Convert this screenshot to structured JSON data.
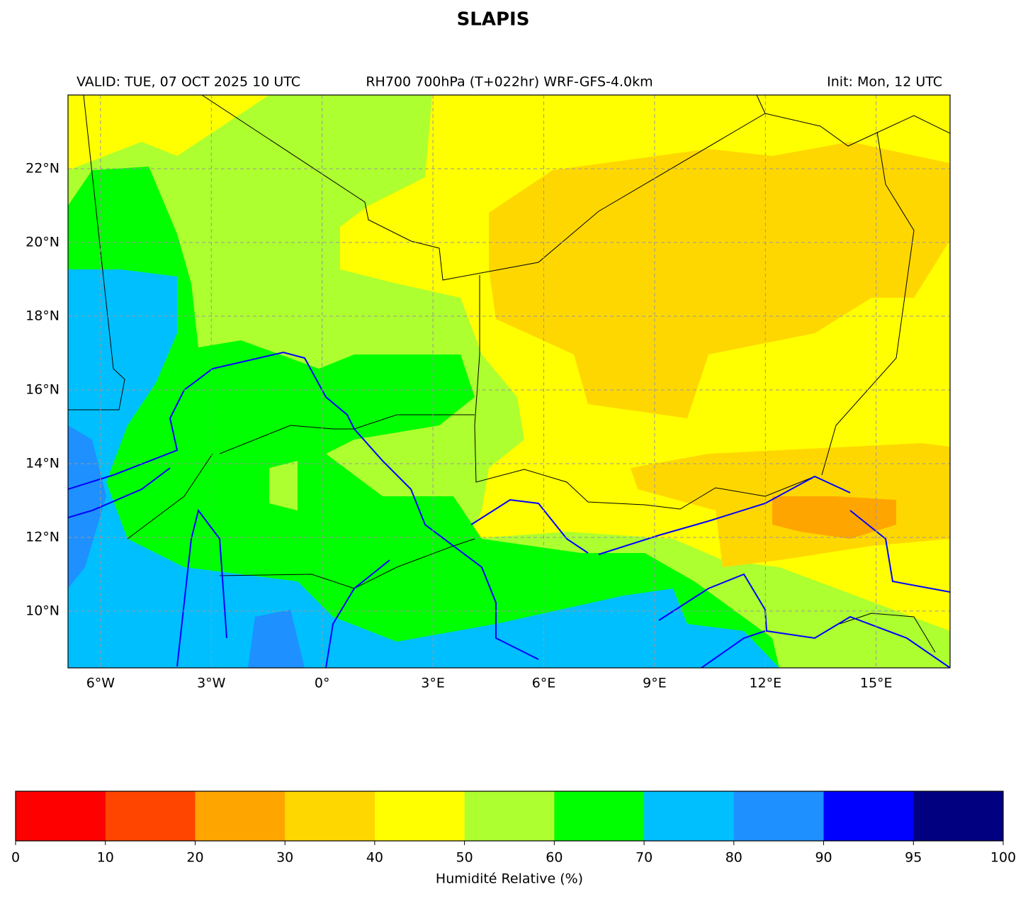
{
  "title": "SLAPIS",
  "header": {
    "left": "VALID: TUE, 07 OCT 2025 10 UTC",
    "center": "RH700 700hPa (T+022hr) WRF-GFS-4.0km",
    "right": "Init: Mon, 12 UTC"
  },
  "map": {
    "xlim": [
      -6.88,
      17
    ],
    "ylim": [
      8.46,
      24
    ],
    "xticks": [
      {
        "value": -6,
        "label": "6°W"
      },
      {
        "value": -3,
        "label": "3°W"
      },
      {
        "value": 0,
        "label": "0°"
      },
      {
        "value": 3,
        "label": "3°E"
      },
      {
        "value": 6,
        "label": "6°E"
      },
      {
        "value": 9,
        "label": "9°E"
      },
      {
        "value": 12,
        "label": "12°E"
      },
      {
        "value": 15,
        "label": "15°E"
      }
    ],
    "yticks": [
      {
        "value": 10,
        "label": "10°N"
      },
      {
        "value": 12,
        "label": "12°N"
      },
      {
        "value": 14,
        "label": "14°N"
      },
      {
        "value": 16,
        "label": "16°N"
      },
      {
        "value": 18,
        "label": "18°N"
      },
      {
        "value": 20,
        "label": "20°N"
      },
      {
        "value": 22,
        "label": "22°N"
      }
    ],
    "grid": true
  },
  "colorbar": {
    "label": "Humidité Relative (%)",
    "boundaries": [
      0,
      10,
      20,
      30,
      40,
      50,
      60,
      70,
      80,
      90,
      95,
      100
    ],
    "colors": [
      "#ff0000",
      "#ff4500",
      "#ffa500",
      "#ffd700",
      "#ffff00",
      "#adff2f",
      "#00ff00",
      "#00bfff",
      "#1e90ff",
      "#0000ff",
      "#000080"
    ]
  }
}
